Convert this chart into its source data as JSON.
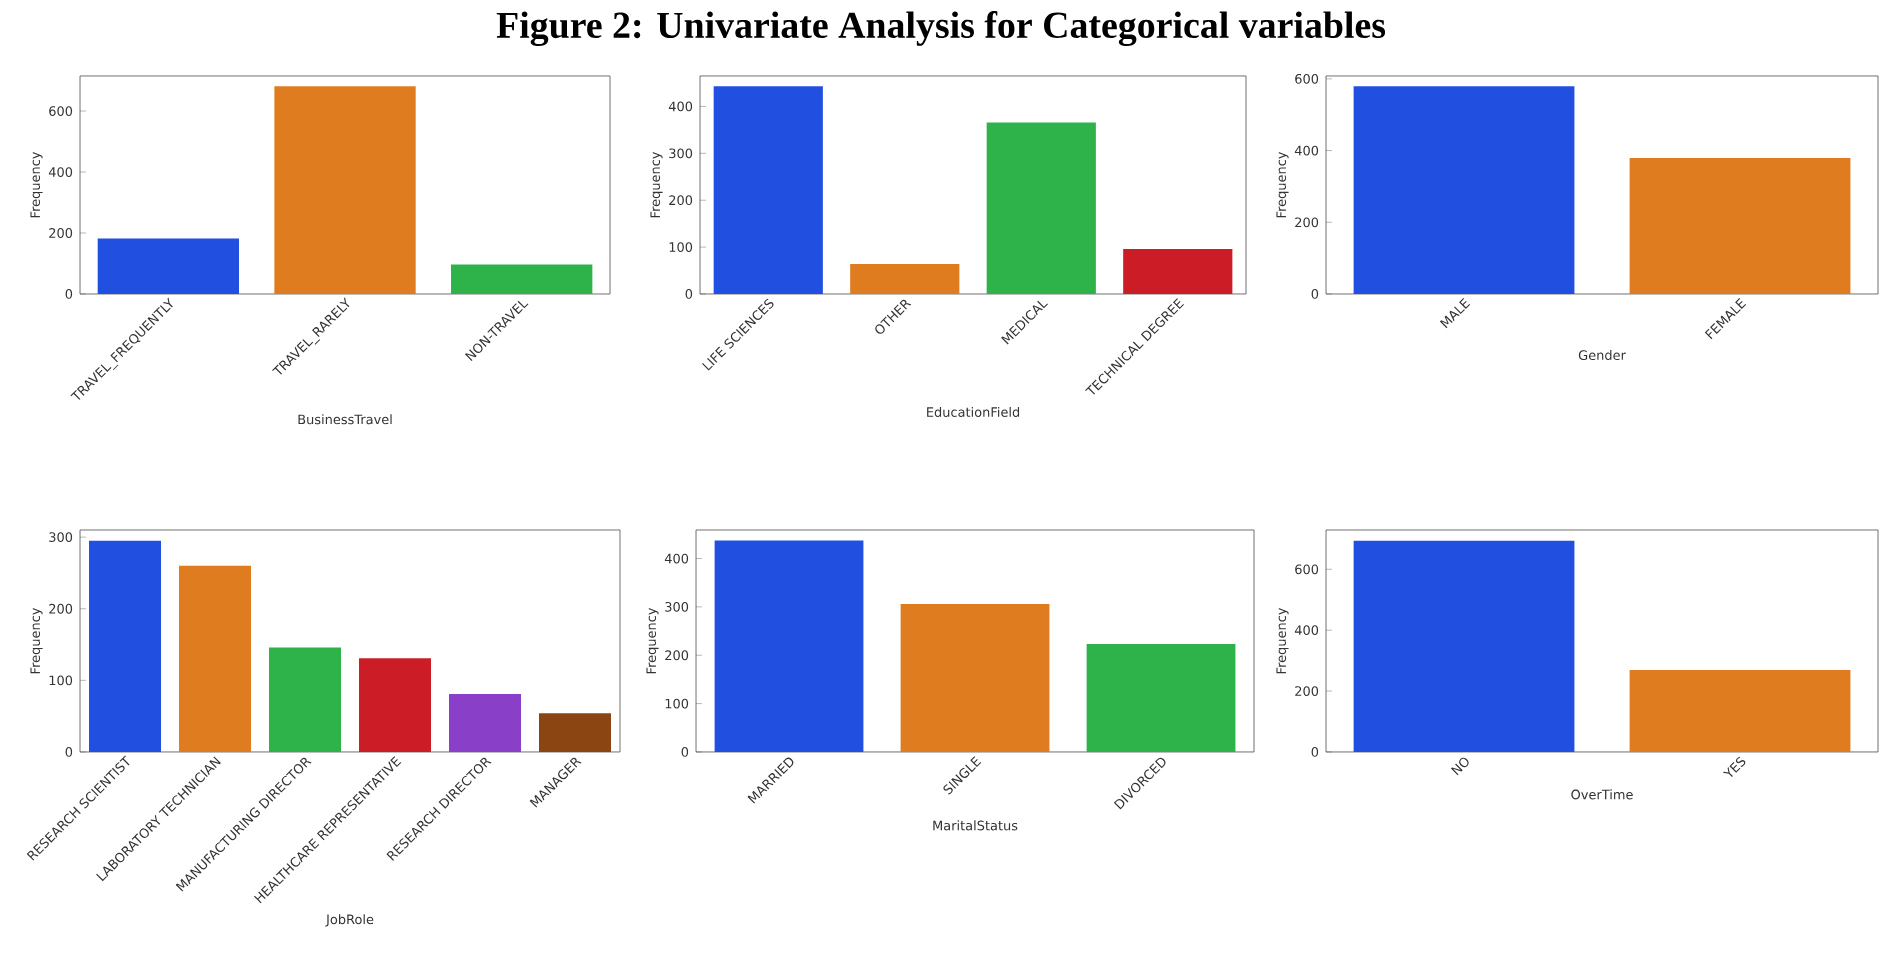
{
  "chart_data": [
    {
      "type": "bar",
      "title": "Figure 2: Univariate Analysis for Categorical variables",
      "xlabel": "BusinessTravel",
      "ylabel": "Frequency",
      "categories": [
        "TRAVEL_FREQUENTLY",
        "TRAVEL_RARELY",
        "NON-TRAVEL"
      ],
      "values": [
        182,
        681,
        97
      ],
      "colors": [
        "#2150e0",
        "#e07c20",
        "#2db34a"
      ],
      "ylim": [
        0,
        715
      ],
      "yticks": [
        0,
        200,
        400,
        600
      ]
    },
    {
      "type": "bar",
      "xlabel": "EducationField",
      "ylabel": "Frequency",
      "categories": [
        "LIFE SCIENCES",
        "OTHER",
        "MEDICAL",
        "TECHNICAL DEGREE"
      ],
      "values": [
        443,
        64,
        366,
        96
      ],
      "colors": [
        "#2150e0",
        "#e07c20",
        "#2db34a",
        "#cc1c26"
      ],
      "ylim": [
        0,
        465
      ],
      "yticks": [
        0,
        100,
        200,
        300,
        400
      ]
    },
    {
      "type": "bar",
      "xlabel": "Gender",
      "ylabel": "Frequency",
      "categories": [
        "MALE",
        "FEMALE"
      ],
      "values": [
        579,
        379
      ],
      "colors": [
        "#2150e0",
        "#e07c20"
      ],
      "ylim": [
        0,
        608
      ],
      "yticks": [
        0,
        200,
        400,
        600
      ]
    },
    {
      "type": "bar",
      "xlabel": "JobRole",
      "ylabel": "Frequency",
      "categories": [
        "RESEARCH SCIENTIST",
        "LABORATORY TECHNICIAN",
        "MANUFACTURING DIRECTOR",
        "HEALTHCARE REPRESENTATIVE",
        "RESEARCH DIRECTOR",
        "MANAGER"
      ],
      "values": [
        295,
        260,
        146,
        131,
        81,
        54
      ],
      "colors": [
        "#2150e0",
        "#e07c20",
        "#2db34a",
        "#cc1c26",
        "#8a3fc8",
        "#8b4513"
      ],
      "ylim": [
        0,
        310
      ],
      "yticks": [
        0,
        100,
        200,
        300
      ]
    },
    {
      "type": "bar",
      "xlabel": "MaritalStatus",
      "ylabel": "Frequency",
      "categories": [
        "MARRIED",
        "SINGLE",
        "DIVORCED"
      ],
      "values": [
        437,
        306,
        223
      ],
      "colors": [
        "#2150e0",
        "#e07c20",
        "#2db34a"
      ],
      "ylim": [
        0,
        459
      ],
      "yticks": [
        0,
        100,
        200,
        300,
        400
      ]
    },
    {
      "type": "bar",
      "xlabel": "OverTime",
      "ylabel": "Frequency",
      "categories": [
        "NO",
        "YES"
      ],
      "values": [
        694,
        269
      ],
      "colors": [
        "#2150e0",
        "#e07c20"
      ],
      "ylim": [
        0,
        729
      ],
      "yticks": [
        0,
        200,
        400,
        600
      ]
    }
  ]
}
